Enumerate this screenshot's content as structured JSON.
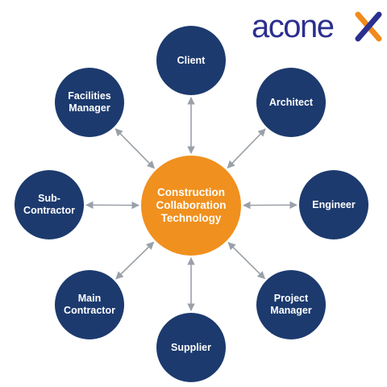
{
  "brand": {
    "logo_text": "aconex",
    "logo_color": "#2b2f8f",
    "accent_color": "#f08a1c"
  },
  "colors": {
    "outer_node": "#1c3a6e",
    "hub_node": "#f0901e",
    "connector": "#9aa0a8",
    "text": "#ffffff"
  },
  "hub": {
    "id": "hub",
    "label": "Construction\nCollaboration\nTechnology"
  },
  "nodes": [
    {
      "id": "client",
      "label": "Client"
    },
    {
      "id": "architect",
      "label": "Architect"
    },
    {
      "id": "engineer",
      "label": "Engineer"
    },
    {
      "id": "project-manager",
      "label": "Project\nManager"
    },
    {
      "id": "supplier",
      "label": "Supplier"
    },
    {
      "id": "main-contractor",
      "label": "Main\nContractor"
    },
    {
      "id": "sub-contractor",
      "label": "Sub-\nContractor"
    },
    {
      "id": "facilities-manager",
      "label": "Facilities\nManager"
    }
  ],
  "edges": [
    {
      "from": "hub",
      "to": "client",
      "arrows": "both"
    },
    {
      "from": "hub",
      "to": "architect",
      "arrows": "both"
    },
    {
      "from": "hub",
      "to": "engineer",
      "arrows": "both"
    },
    {
      "from": "hub",
      "to": "project-manager",
      "arrows": "both"
    },
    {
      "from": "hub",
      "to": "supplier",
      "arrows": "both"
    },
    {
      "from": "hub",
      "to": "main-contractor",
      "arrows": "both"
    },
    {
      "from": "hub",
      "to": "sub-contractor",
      "arrows": "both"
    },
    {
      "from": "hub",
      "to": "facilities-manager",
      "arrows": "both"
    }
  ]
}
